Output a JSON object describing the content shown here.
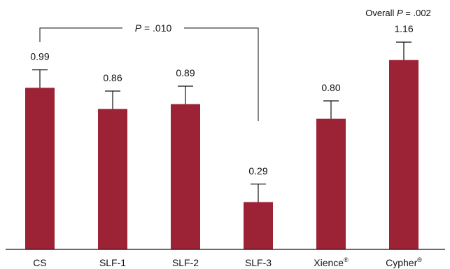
{
  "chart_data": {
    "type": "bar",
    "categories": [
      {
        "label": "CS",
        "sup": ""
      },
      {
        "label": "SLF-1",
        "sup": ""
      },
      {
        "label": "SLF-2",
        "sup": ""
      },
      {
        "label": "SLF-3",
        "sup": ""
      },
      {
        "label": "Xience",
        "sup": "®"
      },
      {
        "label": "Cypher",
        "sup": "®"
      }
    ],
    "values": [
      0.99,
      0.86,
      0.89,
      0.29,
      0.8,
      1.16
    ],
    "value_labels": [
      "0.99",
      "0.86",
      "0.89",
      "0.29",
      "0.80",
      "1.16"
    ],
    "error_upper": [
      1.1,
      0.97,
      1.0,
      0.4,
      0.91,
      1.27
    ],
    "ylim": [
      0,
      1.4
    ],
    "bar_color": "#9b2335",
    "comparison": {
      "from": 0,
      "to": 3,
      "p_letter": "P",
      "p_value": " = .010"
    },
    "overall": {
      "prefix": "Overall ",
      "p_letter": "P",
      "p_value": " = .002"
    }
  }
}
